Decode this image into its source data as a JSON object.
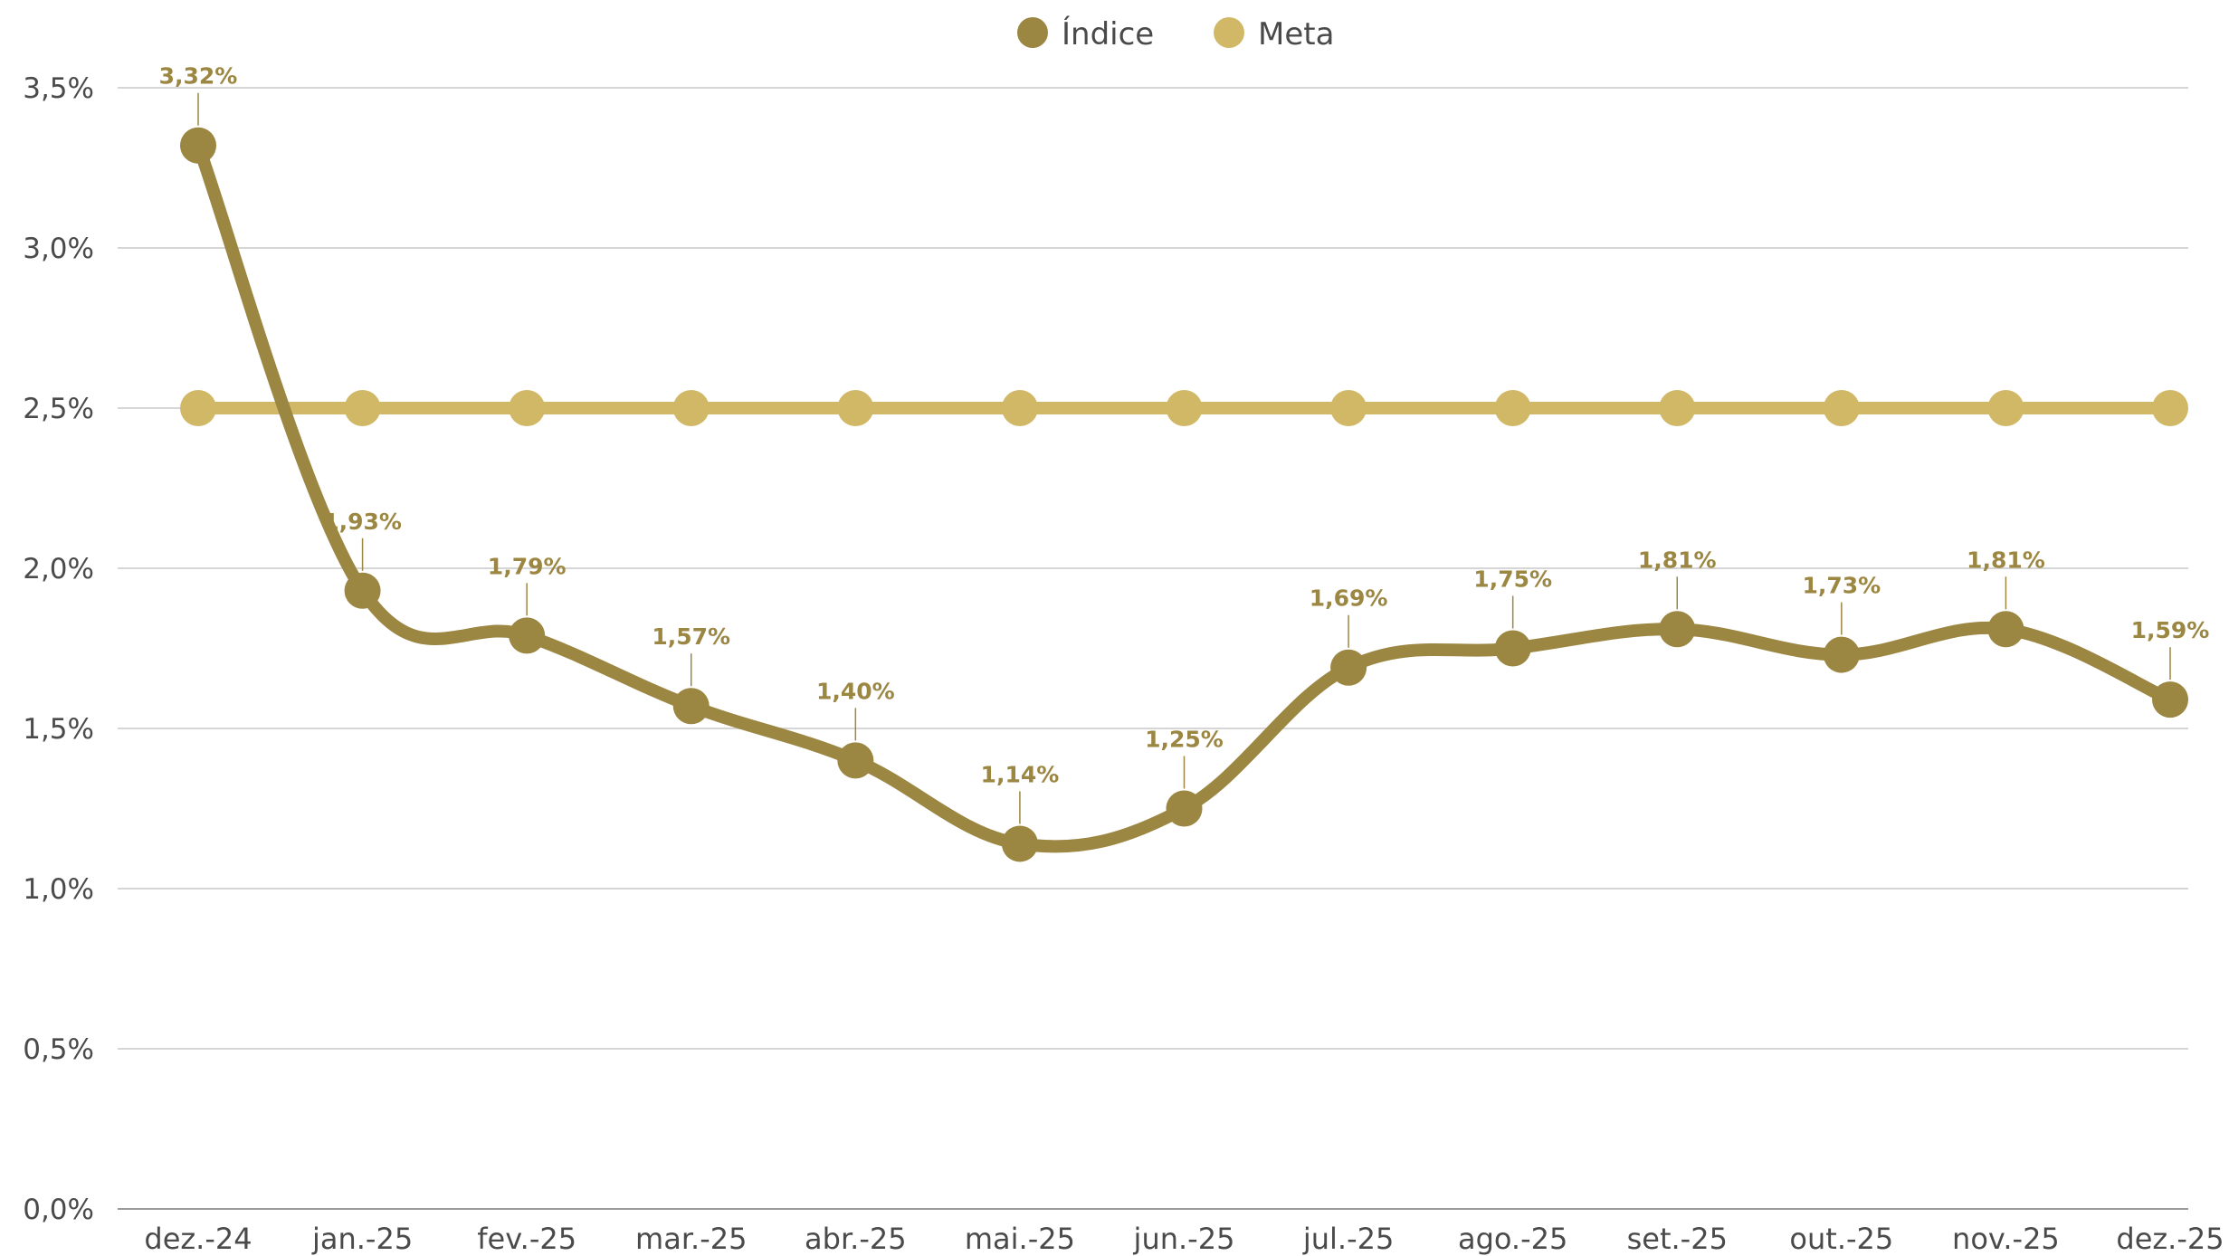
{
  "chart_data": {
    "type": "line",
    "categories": [
      "dez.-24",
      "jan.-25",
      "fev.-25",
      "mar.-25",
      "abr.-25",
      "mai.-25",
      "jun.-25",
      "jul.-25",
      "ago.-25",
      "set.-25",
      "out.-25",
      "nov.-25",
      "dez.-25"
    ],
    "series": [
      {
        "name": "Índice",
        "color": "#9b8642",
        "values": [
          3.32,
          1.93,
          1.79,
          1.57,
          1.4,
          1.14,
          1.25,
          1.69,
          1.75,
          1.81,
          1.73,
          1.81,
          1.59
        ],
        "labels": [
          "3,32%",
          "1,93%",
          "1,79%",
          "1,57%",
          "1,40%",
          "1,14%",
          "1,25%",
          "1,69%",
          "1,75%",
          "1,81%",
          "1,73%",
          "1,81%",
          "1,59%"
        ]
      },
      {
        "name": "Meta",
        "color": "#d1b866",
        "values": [
          2.5,
          2.5,
          2.5,
          2.5,
          2.5,
          2.5,
          2.5,
          2.5,
          2.5,
          2.5,
          2.5,
          2.5,
          2.5
        ]
      }
    ],
    "ylim": [
      0,
      3.5
    ],
    "yticks": [
      0,
      0.5,
      1.0,
      1.5,
      2.0,
      2.5,
      3.0,
      3.5
    ],
    "ytick_labels": [
      "0,0%",
      "0,5%",
      "1,0%",
      "1,5%",
      "2,0%",
      "2,5%",
      "3,0%",
      "3,5%"
    ],
    "grid": true,
    "legend_position": "top-center",
    "title": "",
    "xlabel": "",
    "ylabel": ""
  }
}
